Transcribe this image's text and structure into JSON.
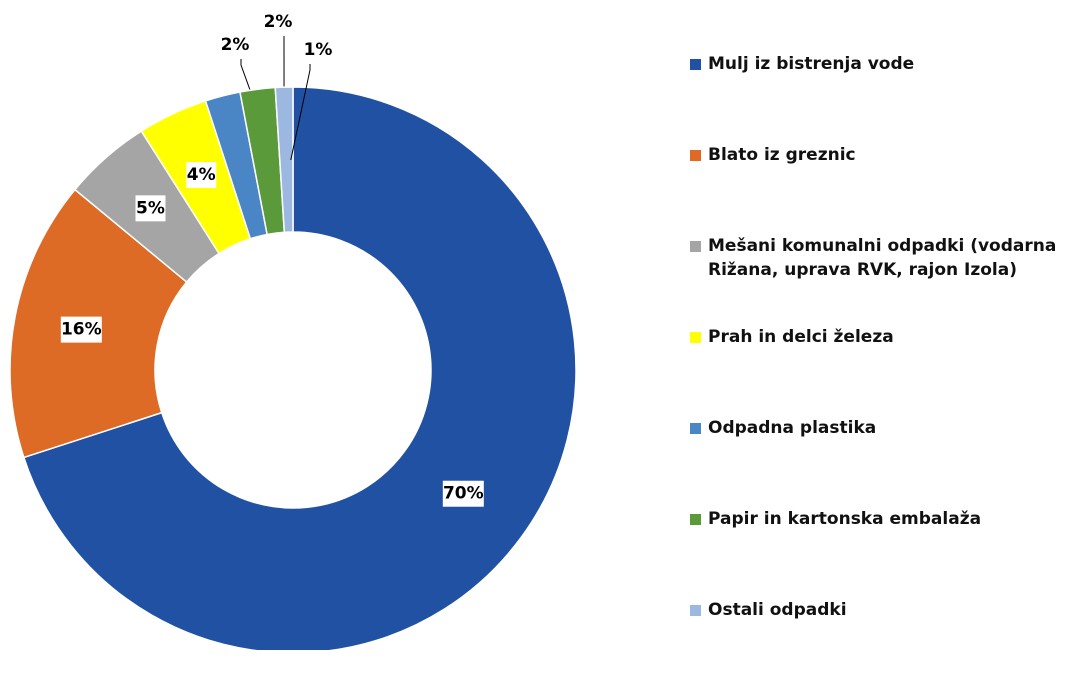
{
  "chart_data": {
    "type": "donut",
    "categories": [
      "Mulj iz bistrenja vode",
      "Blato iz greznic",
      "Mešani komunalni odpadki (vodarna Rižana, uprava RVK, rajon Izola)",
      "Prah in delci železa",
      "Odpadna plastika",
      "Papir in kartonska embalaža",
      "Ostali odpadki"
    ],
    "values": [
      70,
      16,
      5,
      4,
      2,
      2,
      1
    ],
    "value_labels": [
      "70%",
      "16%",
      "5%",
      "4%",
      "2%",
      "2%",
      "1%"
    ],
    "colors": [
      "#2151a3",
      "#dd6b25",
      "#a5a5a5",
      "#ffff00",
      "#4a86c5",
      "#5b9a3b",
      "#9db8e0"
    ],
    "legend": "right"
  }
}
